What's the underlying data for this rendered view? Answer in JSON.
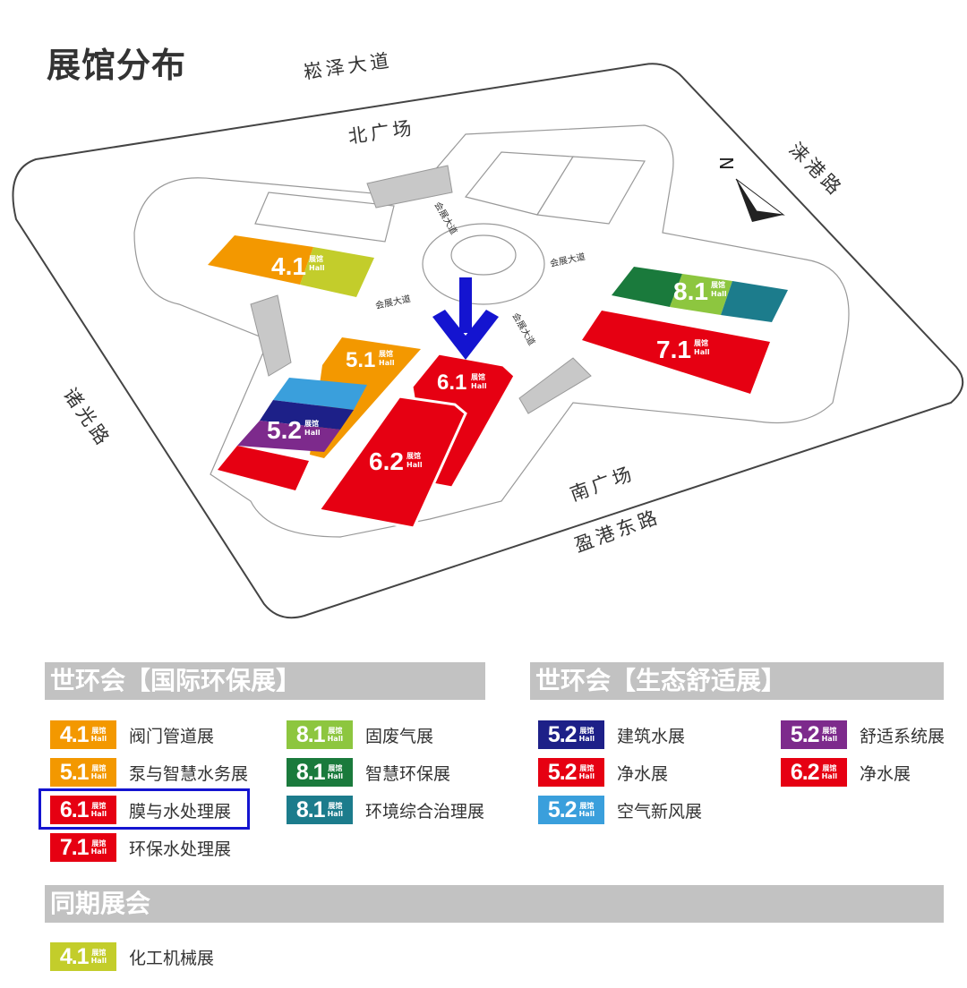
{
  "title": "展馆分布",
  "map": {
    "roads": {
      "north": "崧泽大道",
      "east": "涞港路",
      "west": "诸光路",
      "south": "盈港东路"
    },
    "plazas": {
      "north": "北广场",
      "south": "南广场"
    },
    "avenue": "会展大道",
    "compass": "N",
    "hall_word": "展馆",
    "hall_en": "Hall",
    "halls": [
      {
        "id": "4.1",
        "colors": [
          "#f39800",
          "#c3cd2b"
        ]
      },
      {
        "id": "5.1",
        "colors": [
          "#f39800"
        ]
      },
      {
        "id": "5.2",
        "colors": [
          "#3a9fdc",
          "#1d2088",
          "#7d2a8c",
          "#e60012"
        ]
      },
      {
        "id": "6.1",
        "colors": [
          "#e60012"
        ],
        "highlighted": true
      },
      {
        "id": "6.2",
        "colors": [
          "#e60012"
        ]
      },
      {
        "id": "7.1",
        "colors": [
          "#e60012"
        ]
      },
      {
        "id": "8.1",
        "colors": [
          "#1a7a3c",
          "#8dc63f",
          "#1c7c8c"
        ]
      }
    ],
    "arrow_color": "#1414d0"
  },
  "legend": {
    "hall_word": "展馆",
    "hall_en": "Hall",
    "sections": [
      {
        "title": "世环会【国际环保展】",
        "items": [
          {
            "hall": "4.1",
            "color": "#f39800",
            "label": "阀门管道展"
          },
          {
            "hall": "5.1",
            "color": "#f39800",
            "label": "泵与智慧水务展"
          },
          {
            "hall": "6.1",
            "color": "#e60012",
            "label": "膜与水处理展",
            "highlighted": true
          },
          {
            "hall": "7.1",
            "color": "#e60012",
            "label": "环保水处理展"
          },
          {
            "hall": "8.1",
            "color": "#8dc63f",
            "label": "固废气展"
          },
          {
            "hall": "8.1",
            "color": "#1a7a3c",
            "label": "智慧环保展"
          },
          {
            "hall": "8.1",
            "color": "#1c7c8c",
            "label": "环境综合治理展"
          }
        ]
      },
      {
        "title": "世环会【生态舒适展】",
        "items": [
          {
            "hall": "5.2",
            "color": "#1d2088",
            "label": "建筑水展"
          },
          {
            "hall": "5.2",
            "color": "#e60012",
            "label": "净水展"
          },
          {
            "hall": "5.2",
            "color": "#3a9fdc",
            "label": "空气新风展"
          },
          {
            "hall": "5.2",
            "color": "#7d2a8c",
            "label": "舒适系统展"
          },
          {
            "hall": "6.2",
            "color": "#e60012",
            "label": "净水展"
          }
        ]
      },
      {
        "title": "同期展会",
        "items": [
          {
            "hall": "4.1",
            "color": "#c3cd2b",
            "label": "化工机械展"
          }
        ]
      }
    ]
  }
}
